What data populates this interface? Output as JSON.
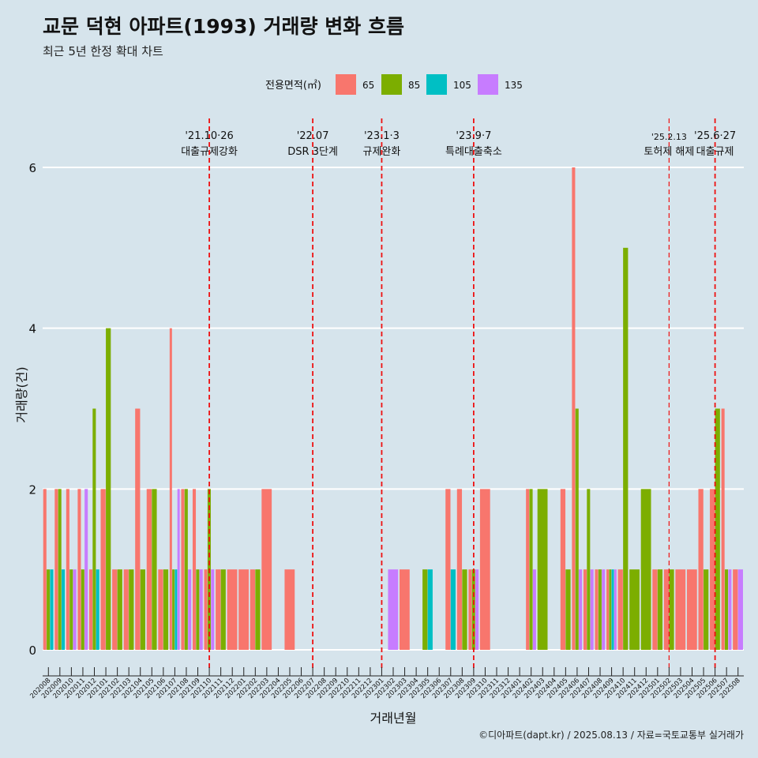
{
  "title": "교문 덕현 아파트(1993) 거래량 변화 흐름",
  "subtitle": "최근 5년 한정 확대 차트",
  "caption": "©디아파트(dapt.kr) / 2025.08.13 / 자료=국토교통부 실거래가",
  "chart_data": {
    "type": "bar",
    "xlabel": "거래년월",
    "ylabel": "거래량(건)",
    "ylim": [
      0,
      6.5
    ],
    "yticks": [
      0,
      2,
      4,
      6
    ],
    "legend_title": "전용면적(㎡)",
    "legend_position": "top",
    "grid": true,
    "colors": {
      "65": "#f8766d",
      "85": "#7cae00",
      "105": "#00bfc4",
      "135": "#c77cff"
    },
    "months": [
      "202008",
      "202009",
      "202010",
      "202011",
      "202012",
      "202101",
      "202102",
      "202103",
      "202104",
      "202105",
      "202106",
      "202107",
      "202108",
      "202109",
      "202110",
      "202111",
      "202112",
      "202201",
      "202202",
      "202203",
      "202204",
      "202205",
      "202206",
      "202207",
      "202208",
      "202209",
      "202210",
      "202211",
      "202212",
      "202301",
      "202302",
      "202303",
      "202304",
      "202305",
      "202306",
      "202307",
      "202308",
      "202309",
      "202310",
      "202311",
      "202312",
      "202401",
      "202402",
      "202403",
      "202404",
      "202405",
      "202406",
      "202407",
      "202408",
      "202409",
      "202410",
      "202411",
      "202412",
      "202501",
      "202502",
      "202503",
      "202504",
      "202505",
      "202506",
      "202507",
      "202508"
    ],
    "series": [
      {
        "name": "65",
        "values": [
          2,
          2,
          2,
          2,
          1,
          2,
          1,
          1,
          3,
          2,
          1,
          4,
          2,
          2,
          1,
          1,
          1,
          1,
          1,
          2,
          0,
          1,
          0,
          0,
          0,
          0,
          0,
          0,
          0,
          0,
          0,
          1,
          0,
          0,
          0,
          2,
          2,
          1,
          2,
          0,
          0,
          0,
          2,
          0,
          0,
          2,
          6,
          1,
          1,
          1,
          1,
          0,
          0,
          1,
          1,
          1,
          1,
          2,
          2,
          3,
          1
        ]
      },
      {
        "name": "85",
        "values": [
          1,
          2,
          1,
          1,
          3,
          4,
          1,
          1,
          1,
          2,
          1,
          1,
          2,
          1,
          2,
          1,
          0,
          0,
          1,
          0,
          0,
          0,
          0,
          0,
          0,
          0,
          0,
          0,
          0,
          0,
          0,
          0,
          0,
          1,
          0,
          0,
          1,
          1,
          0,
          0,
          0,
          0,
          2,
          2,
          0,
          1,
          3,
          2,
          1,
          1,
          5,
          1,
          2,
          1,
          1,
          0,
          0,
          1,
          3,
          1,
          0
        ]
      },
      {
        "name": "105",
        "values": [
          1,
          1,
          0,
          0,
          1,
          0,
          0,
          0,
          0,
          0,
          0,
          1,
          0,
          0,
          0,
          0,
          0,
          0,
          0,
          0,
          0,
          0,
          0,
          0,
          0,
          0,
          0,
          0,
          0,
          0,
          0,
          0,
          0,
          1,
          0,
          1,
          0,
          0,
          0,
          0,
          0,
          0,
          0,
          0,
          0,
          0,
          0,
          0,
          0,
          1,
          0,
          0,
          0,
          0,
          0,
          0,
          0,
          0,
          0,
          0,
          0
        ]
      },
      {
        "name": "135",
        "values": [
          0,
          0,
          1,
          2,
          0,
          0,
          0,
          0,
          0,
          0,
          0,
          2,
          1,
          1,
          1,
          0,
          0,
          0,
          0,
          0,
          0,
          0,
          0,
          0,
          0,
          0,
          0,
          0,
          0,
          0,
          1,
          0,
          0,
          0,
          0,
          0,
          0,
          1,
          0,
          0,
          0,
          0,
          1,
          0,
          0,
          0,
          1,
          1,
          1,
          1,
          0,
          0,
          0,
          0,
          0,
          0,
          0,
          0,
          0,
          1,
          1
        ]
      }
    ],
    "annotations": [
      {
        "month": "202110",
        "date": "'21.10·26",
        "label": "대출규제강화",
        "style": "bold"
      },
      {
        "month": "202207",
        "date": "'22.07",
        "label": "DSR 3단계",
        "style": "bold"
      },
      {
        "month": "202301",
        "date": "'23.1·3",
        "label": "규제완화",
        "style": "bold"
      },
      {
        "month": "202309",
        "date": "'23.9·7",
        "label": "특례대출축소",
        "style": "bold"
      },
      {
        "month": "202502",
        "date": "'25.2.13",
        "label": "토허제 해제",
        "style": "thin"
      },
      {
        "month": "202506",
        "date": "'25.6·27",
        "label": "대출규제",
        "style": "bold"
      }
    ]
  }
}
